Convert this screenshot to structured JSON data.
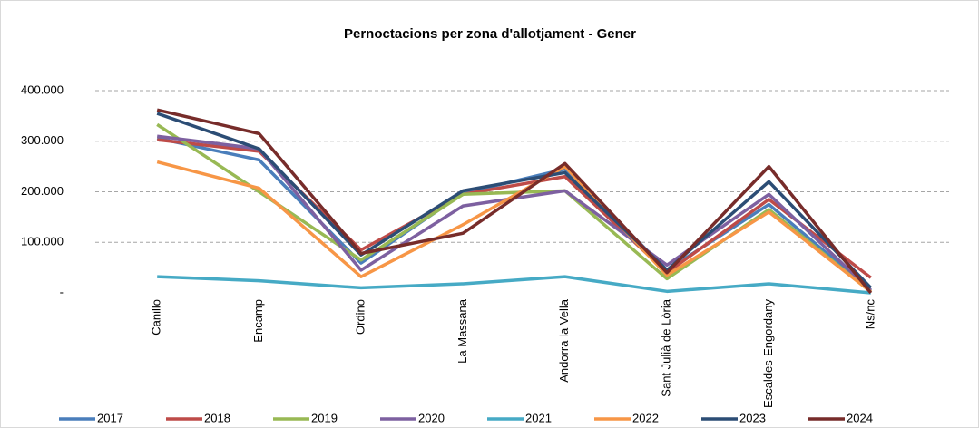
{
  "chart_data": {
    "type": "line",
    "title": "Pernoctacions per zona d'allotjament - Gener",
    "categories": [
      "Canillo",
      "Encamp",
      "Ordino",
      "La Massana",
      "Andorra la Vella",
      "Sant Julià de Lòria",
      "Escaldes-Engordany",
      "Ns/nc"
    ],
    "series": [
      {
        "name": "2017",
        "color": "#4a7ebb",
        "values": [
          306000,
          263000,
          59000,
          197000,
          245000,
          45000,
          175000,
          5000
        ]
      },
      {
        "name": "2018",
        "color": "#be4b48",
        "values": [
          303000,
          280000,
          85000,
          195000,
          230000,
          40000,
          185000,
          30000
        ]
      },
      {
        "name": "2019",
        "color": "#98b954",
        "values": [
          333000,
          200000,
          65000,
          195000,
          202000,
          28000,
          165000,
          2000
        ]
      },
      {
        "name": "2020",
        "color": "#7d60a0",
        "values": [
          310000,
          285000,
          45000,
          172000,
          202000,
          55000,
          195000,
          5000
        ]
      },
      {
        "name": "2021",
        "color": "#46aac5",
        "values": [
          32000,
          24000,
          10000,
          18000,
          32000,
          3000,
          18000,
          0
        ]
      },
      {
        "name": "2022",
        "color": "#f79646",
        "values": [
          259000,
          207000,
          32000,
          135000,
          250000,
          35000,
          160000,
          2000
        ]
      },
      {
        "name": "2023",
        "color": "#2c4d75",
        "values": [
          355000,
          285000,
          75000,
          202000,
          238000,
          45000,
          220000,
          10000
        ]
      },
      {
        "name": "2024",
        "color": "#772c2a",
        "values": [
          362000,
          315000,
          78000,
          118000,
          256000,
          40000,
          250000,
          0
        ]
      }
    ],
    "ylim": [
      0,
      400000
    ],
    "yticks": [
      {
        "value": 0,
        "label": "-"
      },
      {
        "value": 100000,
        "label": "100.000"
      },
      {
        "value": 200000,
        "label": "200.000"
      },
      {
        "value": 300000,
        "label": "300.000"
      },
      {
        "value": 400000,
        "label": "400.000"
      }
    ],
    "grid": true
  }
}
